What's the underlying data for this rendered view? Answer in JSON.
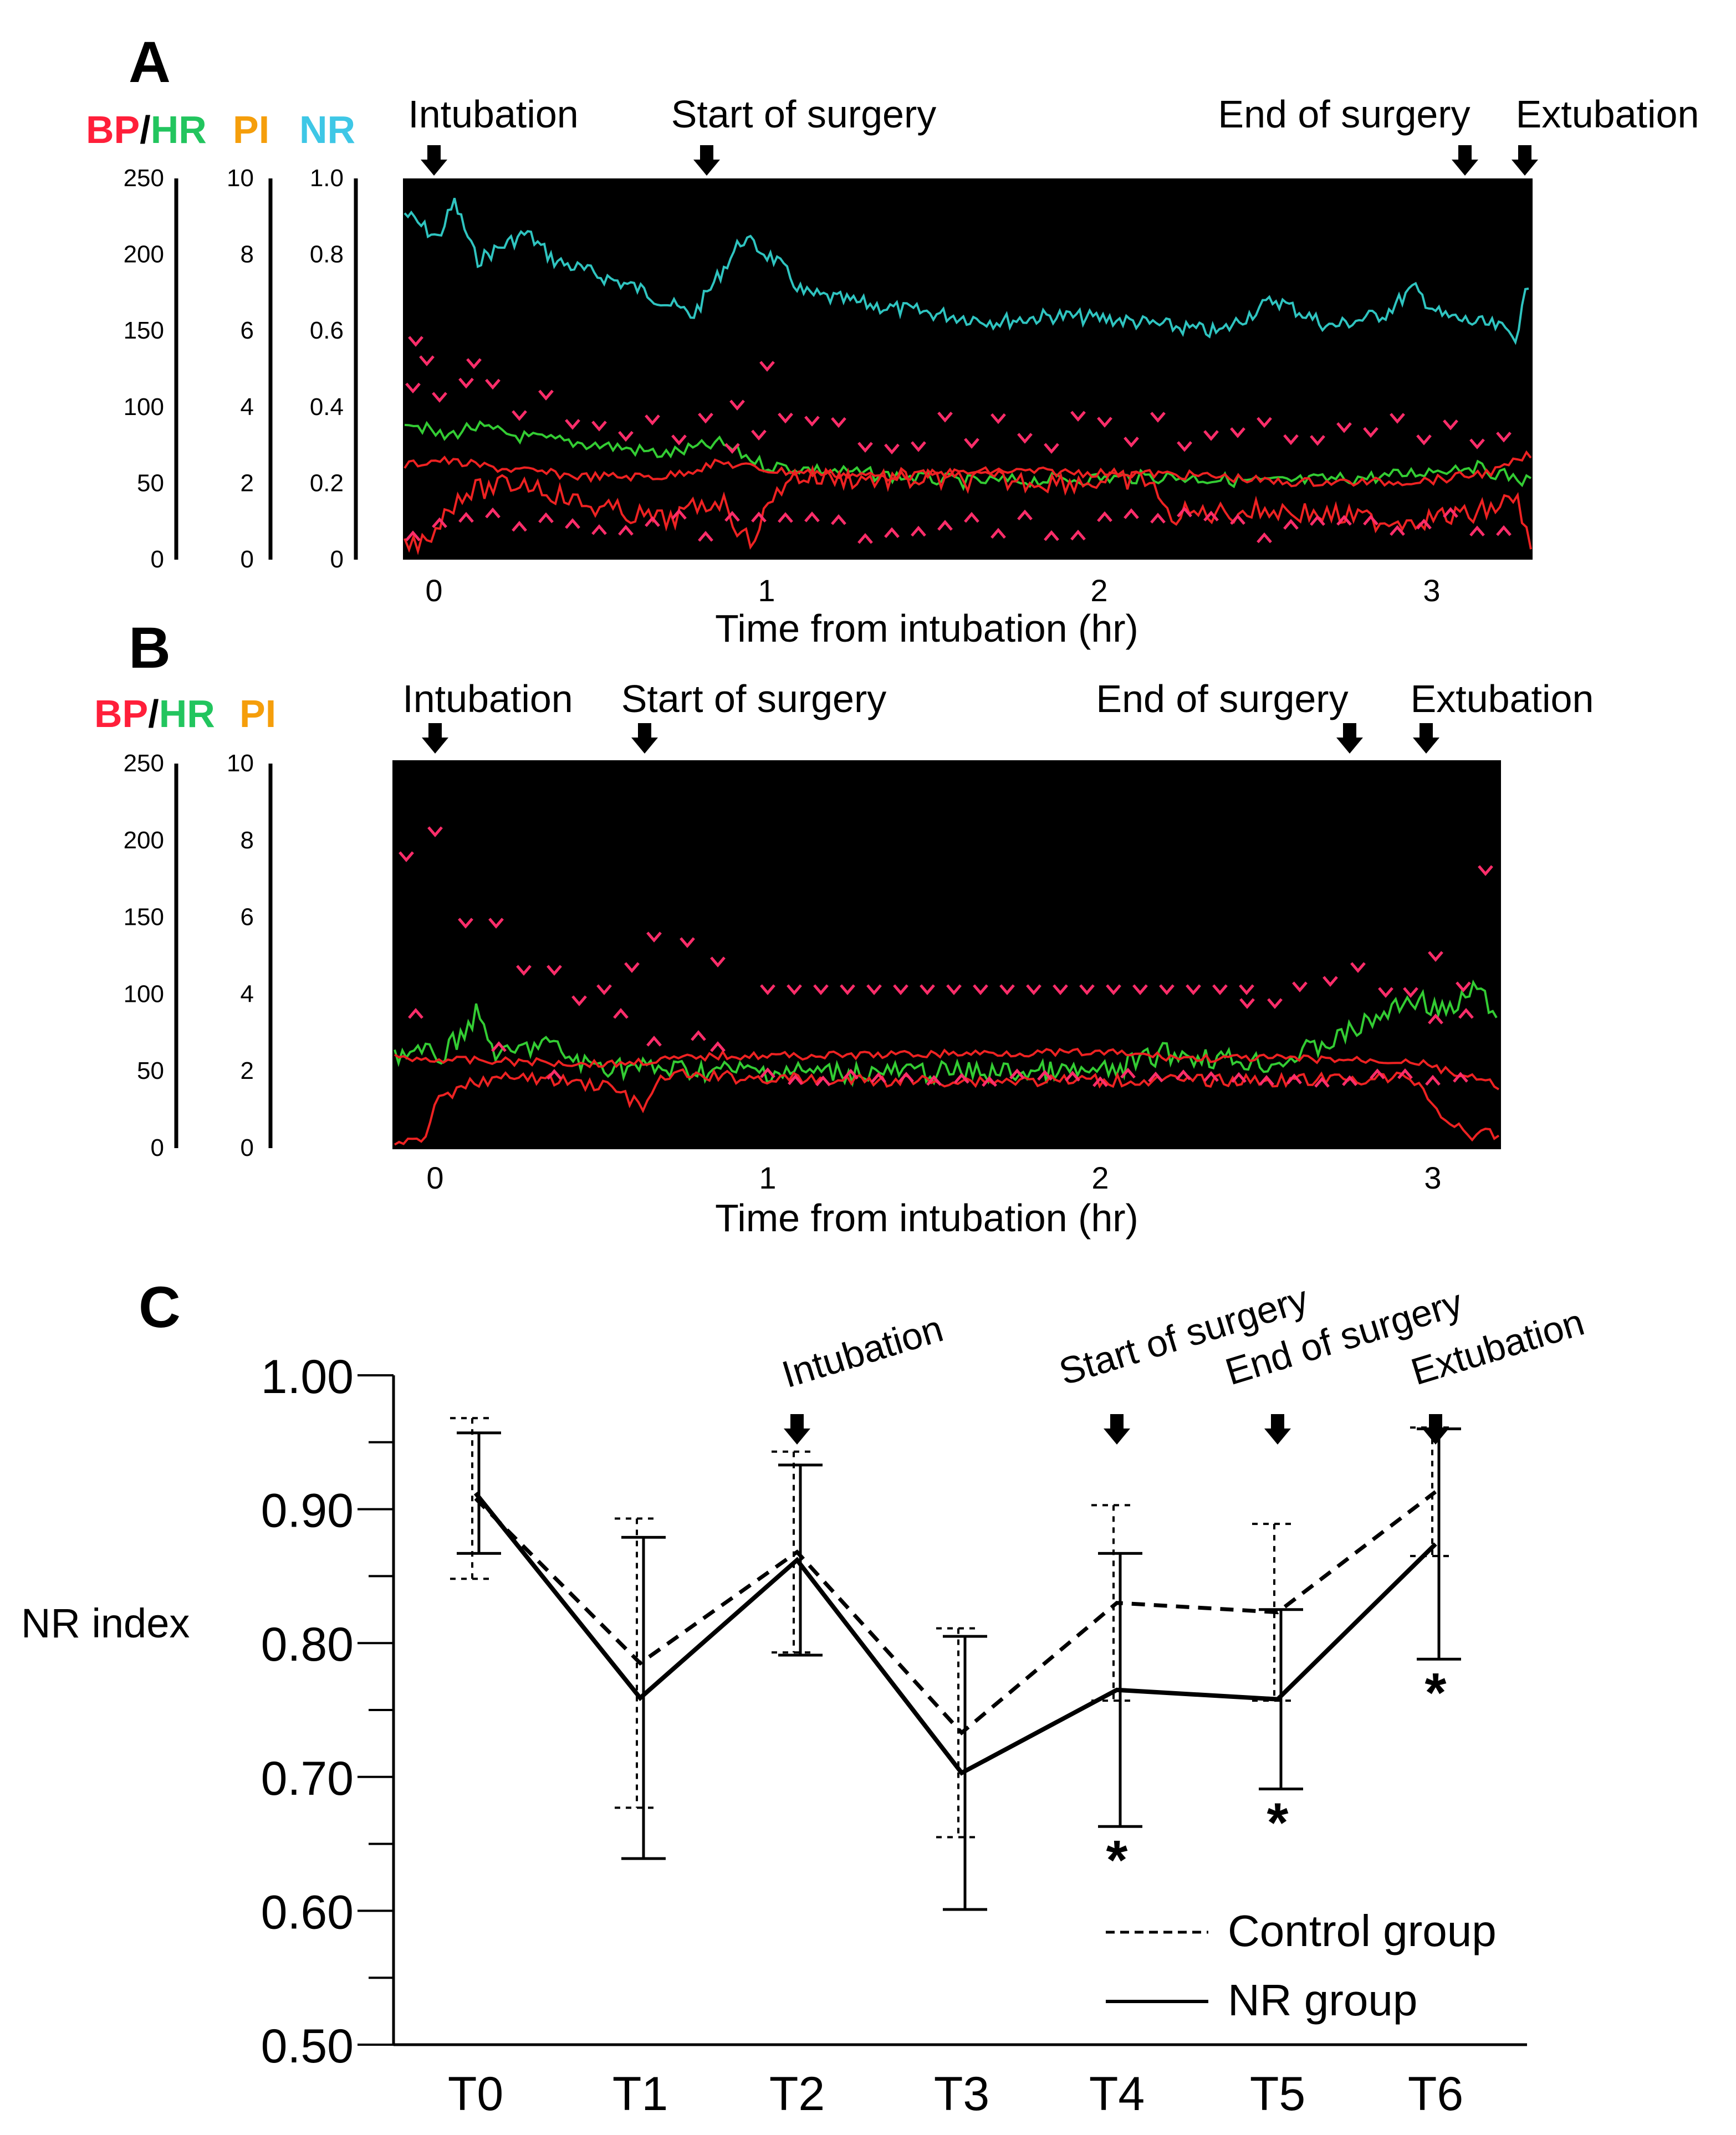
{
  "panels": {
    "A": {
      "label": "A",
      "axis_titles": {
        "bp": "BP",
        "slash": "/",
        "hr": "HR",
        "pi": "PI",
        "nr": "NR"
      },
      "bp_hr_ticks": [
        "250",
        "200",
        "150",
        "100",
        "50",
        "0"
      ],
      "pi_ticks": [
        "10",
        "8",
        "6",
        "4",
        "2",
        "0"
      ],
      "nr_ticks": [
        "1.0",
        "0.8",
        "0.6",
        "0.4",
        "0.2",
        "0"
      ],
      "events": [
        {
          "label": "Intubation",
          "time": 0
        },
        {
          "label": "Start of surgery",
          "time": 0.82
        },
        {
          "label": "End of surgery",
          "time": 3.1
        },
        {
          "label": "Extubation",
          "time": 3.28
        }
      ],
      "x_ticks": [
        "0",
        "1",
        "2",
        "3"
      ],
      "x_label": "Time from intubation (hr)"
    },
    "B": {
      "label": "B",
      "axis_titles": {
        "bp": "BP",
        "slash": "/",
        "hr": "HR",
        "pi": "PI"
      },
      "bp_hr_ticks": [
        "250",
        "200",
        "150",
        "100",
        "50",
        "0"
      ],
      "pi_ticks": [
        "10",
        "8",
        "6",
        "4",
        "2",
        "0"
      ],
      "events": [
        {
          "label": "Intubation",
          "time": 0
        },
        {
          "label": "Start of surgery",
          "time": 0.63
        },
        {
          "label": "End of surgery",
          "time": 2.75
        },
        {
          "label": "Extubation",
          "time": 2.98
        }
      ],
      "x_ticks": [
        "0",
        "1",
        "2",
        "3"
      ],
      "x_label": "Time from intubation (hr)"
    },
    "C": {
      "label": "C"
    }
  },
  "colors": {
    "bp": "#ff1f3a",
    "hr": "#22c55e",
    "pi": "#f59e0b",
    "nr": "#3ec7e6",
    "trace_nr": "#2fc4c0",
    "trace_hr": "#33cc33",
    "trace_bp": "#ee2222",
    "marker": "#ff2d6a"
  },
  "chart_data": {
    "type": "line",
    "ylabel": "NR index",
    "ylim": [
      0.5,
      1.0
    ],
    "yticks": [
      "1.00",
      "0.90",
      "0.80",
      "0.70",
      "0.60",
      "0.50"
    ],
    "categories": [
      "T0",
      "T1",
      "T2",
      "T3",
      "T4",
      "T5",
      "T6"
    ],
    "series": [
      {
        "name": "Control group",
        "style": "dashed",
        "values": [
          0.908,
          0.785,
          0.868,
          0.733,
          0.83,
          0.823,
          0.913
        ],
        "sd": [
          0.06,
          0.108,
          0.075,
          0.078,
          0.073,
          0.066,
          0.048
        ]
      },
      {
        "name": "NR group",
        "style": "solid",
        "values": [
          0.912,
          0.759,
          0.862,
          0.703,
          0.765,
          0.758,
          0.874
        ],
        "sd": [
          0.045,
          0.12,
          0.071,
          0.102,
          0.102,
          0.067,
          0.086
        ]
      }
    ],
    "annotations": [
      {
        "text": "Intubation",
        "category": "T2"
      },
      {
        "text": "Start of surgery",
        "category": "T4"
      },
      {
        "text": "End of surgery",
        "category": "T5"
      },
      {
        "text": "Extubation",
        "category": "T6"
      }
    ],
    "significance": [
      {
        "category": "T4",
        "text": "*"
      },
      {
        "category": "T5",
        "text": "*"
      },
      {
        "category": "T6",
        "text": "*"
      }
    ],
    "legend": [
      "Control group",
      "NR group"
    ],
    "legend_position": "bottom-right"
  }
}
